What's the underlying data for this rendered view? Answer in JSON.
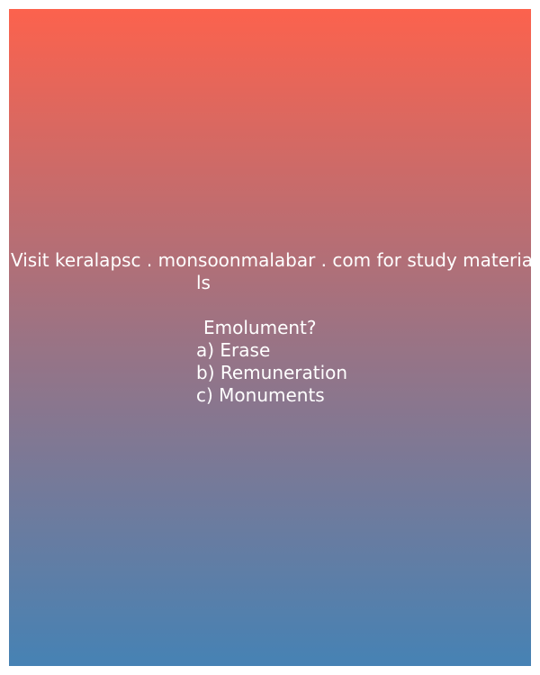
{
  "promo": {
    "line1": "Visit keralapsc . monsoonmalabar . com for study materia",
    "line2": "ls"
  },
  "quiz": {
    "question": "Emolument?",
    "options": [
      "a) Erase",
      "b) Remuneration",
      "c) Monuments"
    ]
  },
  "colors": {
    "gradient_top": "#fc624d",
    "gradient_middle": "#9b7384",
    "gradient_bottom": "#4682b4",
    "text": "#ffffff"
  }
}
